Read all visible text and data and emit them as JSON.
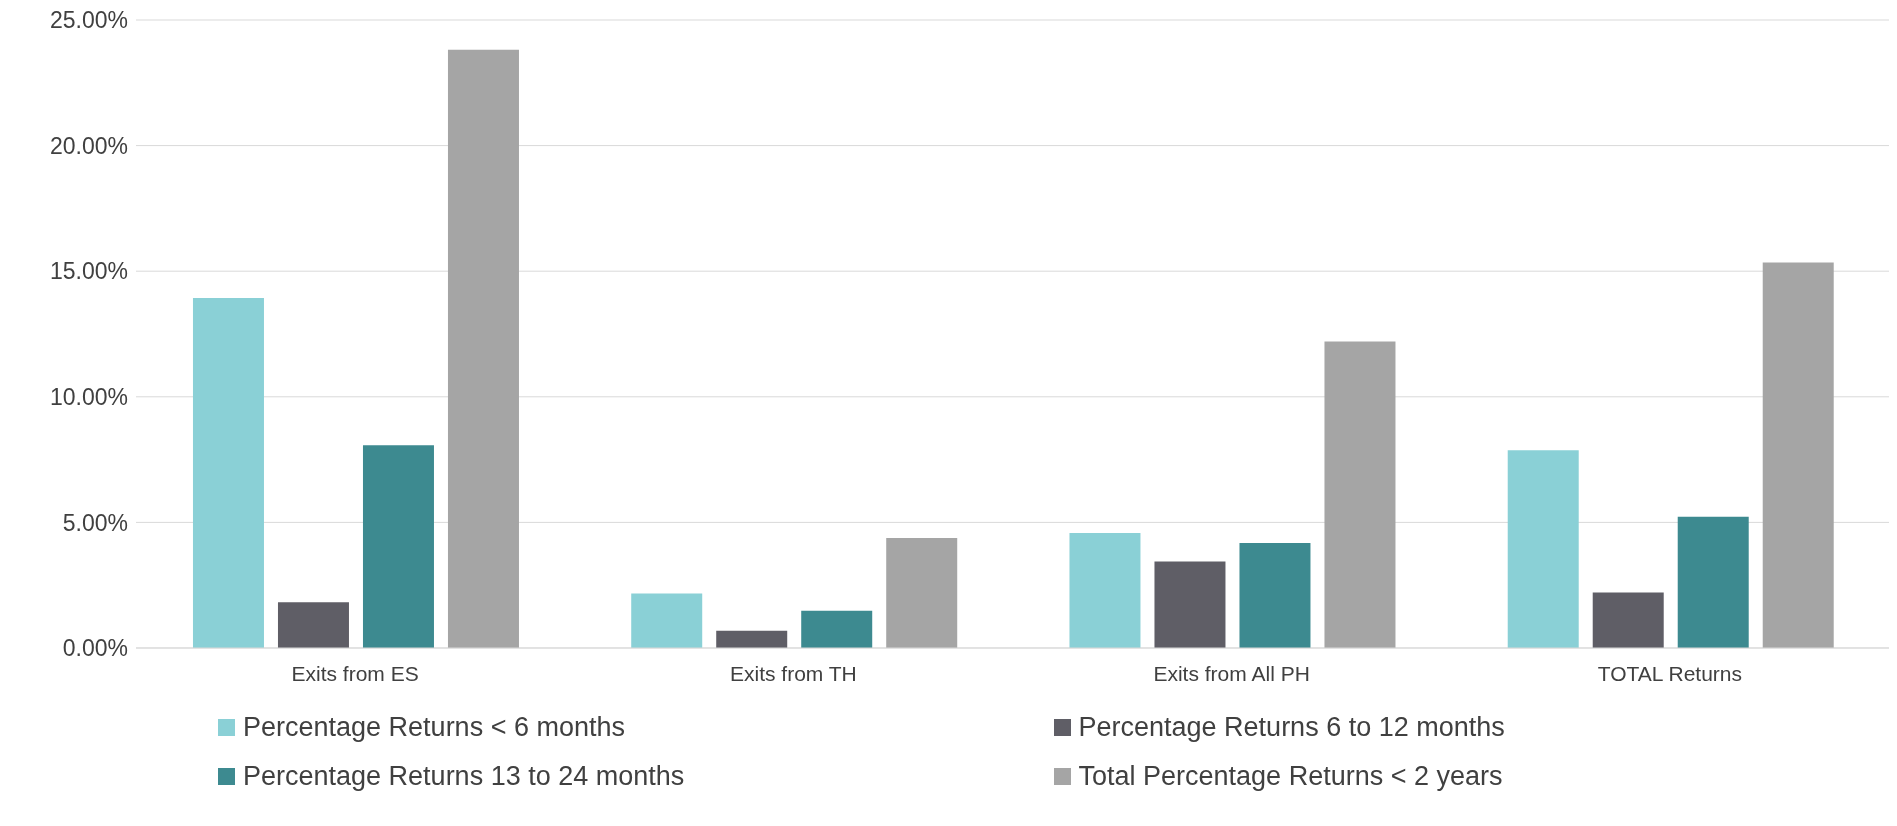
{
  "chart_data": {
    "type": "bar",
    "categories": [
      "Exits from ES",
      "Exits from TH",
      "Exits from All PH",
      "TOTAL Returns"
    ],
    "series": [
      {
        "name": "Percentage Returns < 6 months",
        "color": "#8ad0d6",
        "values": [
          13.93,
          2.17,
          4.58,
          7.87
        ]
      },
      {
        "name": "Percentage Returns 6 to 12 months",
        "color": "#5f5e66",
        "values": [
          1.82,
          0.69,
          3.44,
          2.21
        ]
      },
      {
        "name": "Percentage Returns 13 to 24 months",
        "color": "#3d8a90",
        "values": [
          8.07,
          1.48,
          4.18,
          5.22
        ]
      },
      {
        "name": "Total Percentage Returns < 2 years",
        "color": "#a5a5a5",
        "values": [
          23.82,
          4.38,
          12.2,
          15.35
        ]
      }
    ],
    "ylim": [
      0,
      25
    ],
    "yticks": [
      {
        "value": 0,
        "label": "0.00%"
      },
      {
        "value": 5,
        "label": "5.00%"
      },
      {
        "value": 10,
        "label": "10.00%"
      },
      {
        "value": 15,
        "label": "15.00%"
      },
      {
        "value": 20,
        "label": "20.00%"
      },
      {
        "value": 25,
        "label": "25.00%"
      }
    ],
    "grid": "y",
    "legend": "bottom"
  }
}
